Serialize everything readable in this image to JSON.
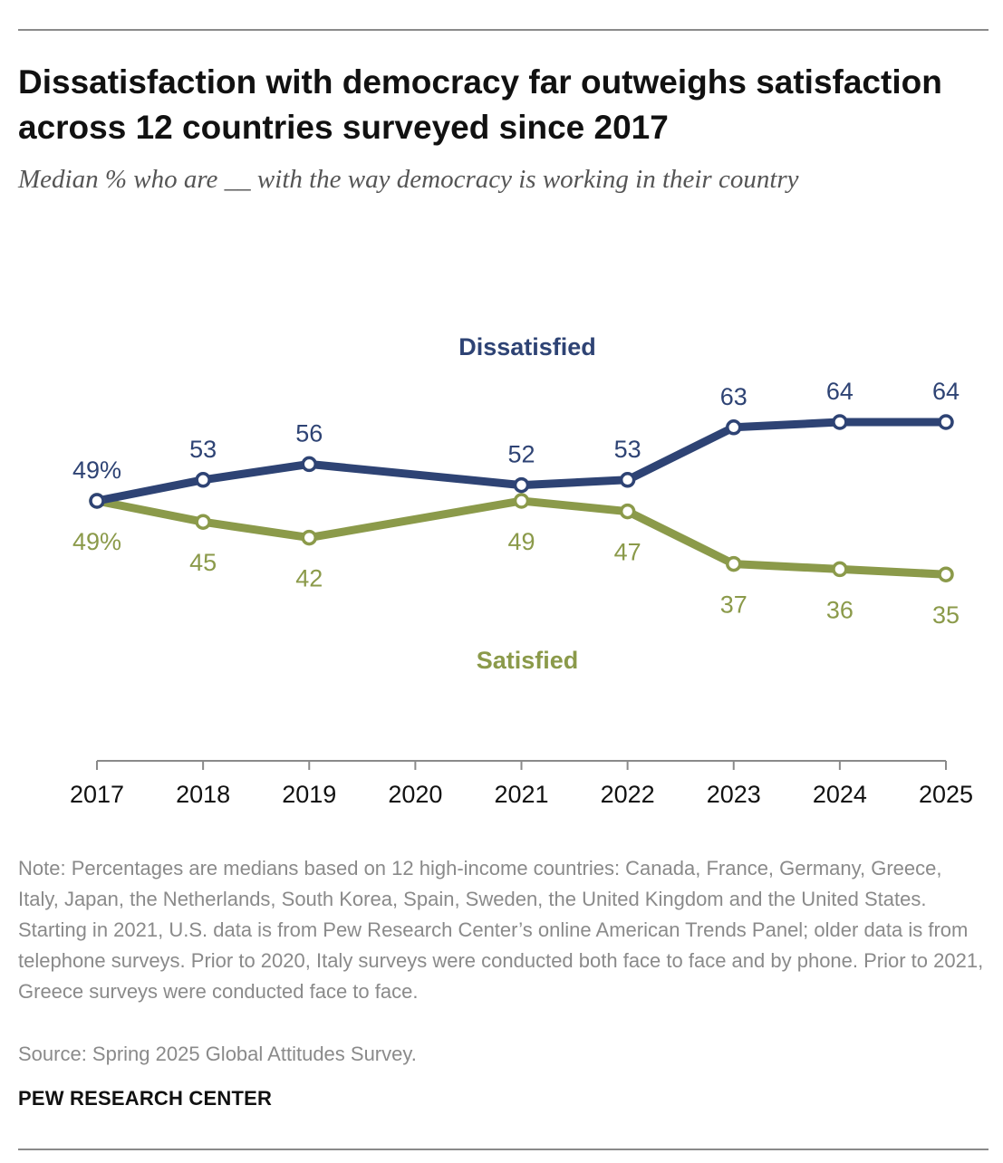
{
  "header": {
    "title": "Dissatisfaction with democracy far outweighs satisfaction across 12 countries surveyed since 2017",
    "subtitle": "Median % who are __ with the way democracy is working in their country"
  },
  "chart_data": {
    "type": "line",
    "x": [
      2017,
      2018,
      2019,
      2020,
      2021,
      2022,
      2023,
      2024,
      2025
    ],
    "series": [
      {
        "name": "Dissatisfied",
        "color": "#2e4374",
        "points": [
          {
            "x": 2017,
            "y": 49,
            "label": "49%"
          },
          {
            "x": 2018,
            "y": 53,
            "label": "53"
          },
          {
            "x": 2019,
            "y": 56,
            "label": "56"
          },
          {
            "x": 2021,
            "y": 52,
            "label": "52"
          },
          {
            "x": 2022,
            "y": 53,
            "label": "53"
          },
          {
            "x": 2023,
            "y": 63,
            "label": "63"
          },
          {
            "x": 2024,
            "y": 64,
            "label": "64"
          },
          {
            "x": 2025,
            "y": 64,
            "label": "64"
          }
        ]
      },
      {
        "name": "Satisfied",
        "color": "#8b9a4a",
        "points": [
          {
            "x": 2017,
            "y": 49,
            "label": "49%"
          },
          {
            "x": 2018,
            "y": 45,
            "label": "45"
          },
          {
            "x": 2019,
            "y": 42,
            "label": "42"
          },
          {
            "x": 2021,
            "y": 49,
            "label": "49"
          },
          {
            "x": 2022,
            "y": 47,
            "label": "47"
          },
          {
            "x": 2023,
            "y": 37,
            "label": "37"
          },
          {
            "x": 2024,
            "y": 36,
            "label": "36"
          },
          {
            "x": 2025,
            "y": 35,
            "label": "35"
          }
        ]
      }
    ],
    "xlabel": "",
    "ylabel": "",
    "grid": false,
    "legend": "direct-labels"
  },
  "footer": {
    "note": "Note: Percentages are medians based on 12 high-income countries: Canada, France, Germany, Greece, Italy, Japan, the Netherlands, South Korea, Spain, Sweden, the United Kingdom and the United States. Starting in 2021, U.S. data is from Pew Research Center’s online American Trends Panel; older data is from telephone surveys. Prior to 2020, Italy surveys were conducted both face to face and by phone. Prior to 2021, Greece surveys were conducted face to face.",
    "source": "Source: Spring 2025 Global Attitudes Survey.",
    "brand": "PEW RESEARCH CENTER"
  }
}
